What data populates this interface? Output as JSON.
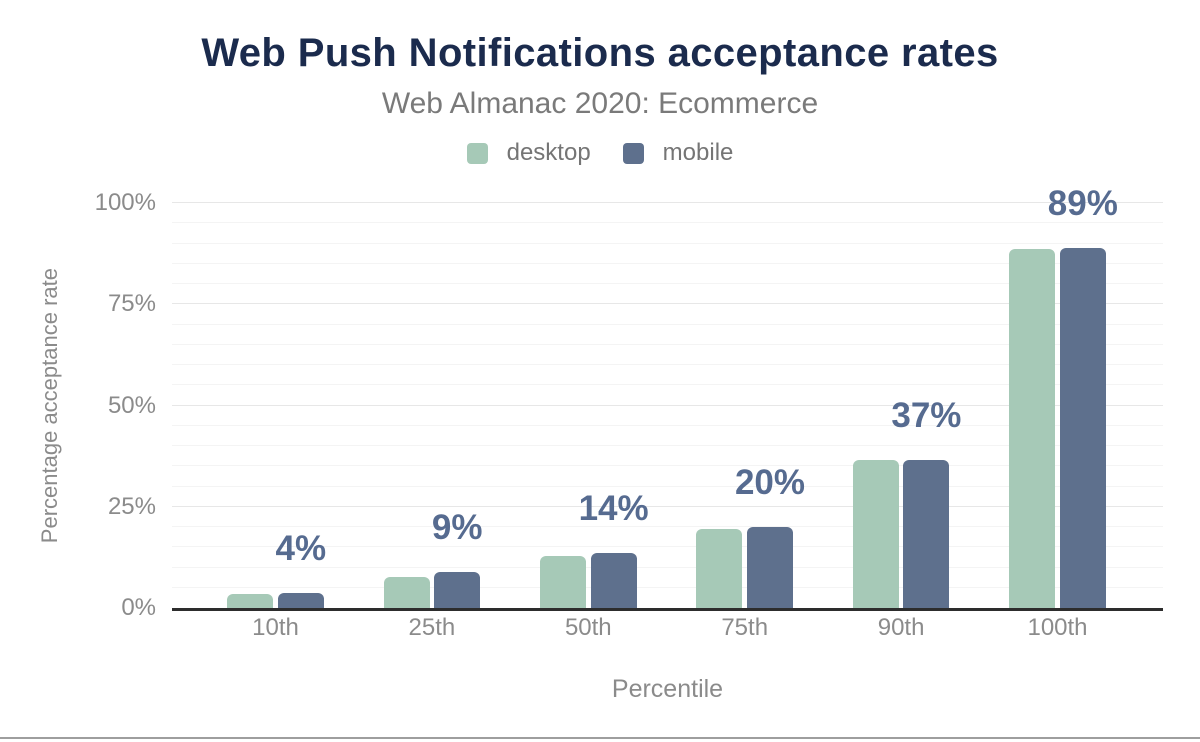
{
  "header": {
    "title": "Web Push Notifications acceptance rates",
    "subtitle": "Web Almanac 2020: Ecommerce"
  },
  "legend": {
    "items": [
      {
        "label": "desktop",
        "color": "#a6c9b7"
      },
      {
        "label": "mobile",
        "color": "#5e708d"
      }
    ]
  },
  "chart_data": {
    "type": "bar",
    "title": "Web Push Notifications acceptance rates",
    "subtitle": "Web Almanac 2020: Ecommerce",
    "categories": [
      "10th",
      "25th",
      "50th",
      "75th",
      "90th",
      "100th"
    ],
    "series": [
      {
        "name": "desktop",
        "color": "#a6c9b7",
        "values": [
          3.5,
          7.7,
          12.9,
          19.4,
          36.5,
          88.6
        ]
      },
      {
        "name": "mobile",
        "color": "#5e708d",
        "values": [
          3.8,
          9.0,
          13.6,
          20.0,
          36.6,
          88.9
        ]
      }
    ],
    "value_labels": {
      "text": [
        "4%",
        "9%",
        "14%",
        "20%",
        "37%",
        "89%"
      ],
      "anchored_to": "mobile",
      "color": "#566b90"
    },
    "xlabel": "Percentile",
    "ylabel": "Percentage acceptance rate",
    "x_ticks": [
      "10th",
      "25th",
      "50th",
      "75th",
      "90th",
      "100th"
    ],
    "y_ticks": [
      {
        "label": "0%",
        "value": 0
      },
      {
        "label": "25%",
        "value": 25
      },
      {
        "label": "50%",
        "value": 50
      },
      {
        "label": "75%",
        "value": 75
      },
      {
        "label": "100%",
        "value": 100
      }
    ],
    "ylim": [
      0,
      100
    ],
    "grid": {
      "minor_step": 5,
      "major_step": 25,
      "minor_color": "#f4f4f4",
      "major_color": "#e7e7e7"
    },
    "axis_line_color": "#2d2d2d",
    "tick_label_color": "#8b8b8b",
    "legend_position": "top"
  },
  "theme": {
    "background": "#ffffff",
    "title_color": "#1b2b4d",
    "subtitle_color": "#7a7a7a",
    "legend_text_color": "#757575",
    "bottom_divider_color": "#9e9e9e"
  }
}
